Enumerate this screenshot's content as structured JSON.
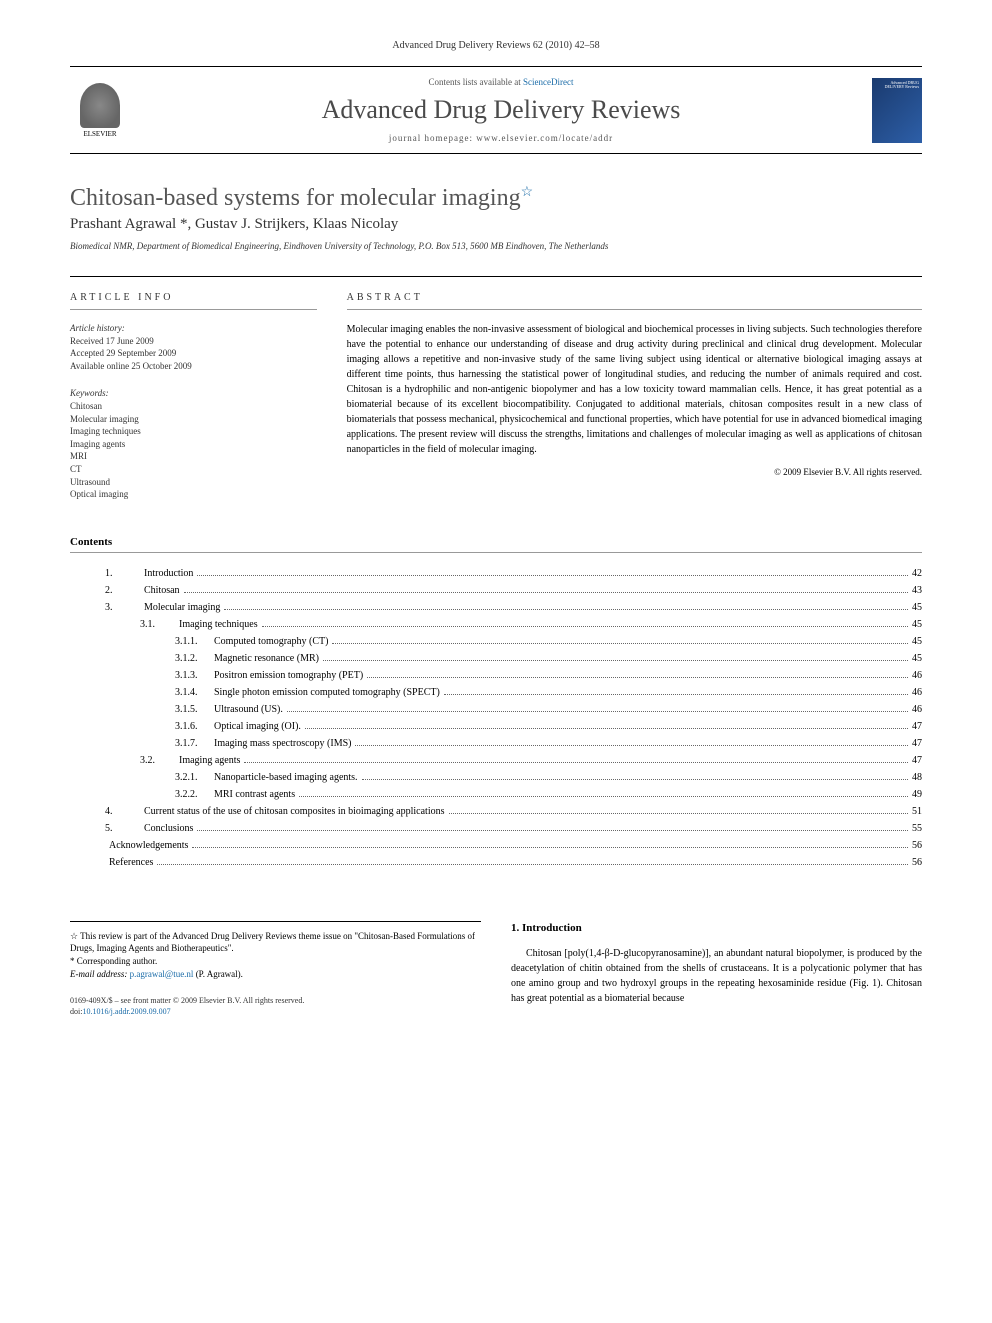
{
  "header": {
    "citation": "Advanced Drug Delivery Reviews 62 (2010) 42–58"
  },
  "banner": {
    "publisher": "ELSEVIER",
    "contents_prefix": "Contents lists available at ",
    "contents_link": "ScienceDirect",
    "journal_title": "Advanced Drug Delivery Reviews",
    "homepage_label": "journal homepage: ",
    "homepage_url": "www.elsevier.com/locate/addr",
    "cover_text": "Advanced DRUG DELIVERY Reviews"
  },
  "article": {
    "title": "Chitosan-based systems for molecular imaging",
    "authors": "Prashant Agrawal *, Gustav J. Strijkers, Klaas Nicolay",
    "affiliation": "Biomedical NMR, Department of Biomedical Engineering, Eindhoven University of Technology, P.O. Box 513, 5600 MB Eindhoven, The Netherlands"
  },
  "info": {
    "header": "ARTICLE INFO",
    "history_label": "Article history:",
    "received": "Received 17 June 2009",
    "accepted": "Accepted 29 September 2009",
    "online": "Available online 25 October 2009",
    "keywords_label": "Keywords:",
    "keywords": [
      "Chitosan",
      "Molecular imaging",
      "Imaging techniques",
      "Imaging agents",
      "MRI",
      "CT",
      "Ultrasound",
      "Optical imaging"
    ]
  },
  "abstract": {
    "header": "ABSTRACT",
    "text": "Molecular imaging enables the non-invasive assessment of biological and biochemical processes in living subjects. Such technologies therefore have the potential to enhance our understanding of disease and drug activity during preclinical and clinical drug development. Molecular imaging allows a repetitive and non-invasive study of the same living subject using identical or alternative biological imaging assays at different time points, thus harnessing the statistical power of longitudinal studies, and reducing the number of animals required and cost. Chitosan is a hydrophilic and non-antigenic biopolymer and has a low toxicity toward mammalian cells. Hence, it has great potential as a biomaterial because of its excellent biocompatibility. Conjugated to additional materials, chitosan composites result in a new class of biomaterials that possess mechanical, physicochemical and functional properties, which have potential for use in advanced biomedical imaging applications. The present review will discuss the strengths, limitations and challenges of molecular imaging as well as applications of chitosan nanoparticles in the field of molecular imaging.",
    "copyright": "© 2009 Elsevier B.V. All rights reserved."
  },
  "contents": {
    "title": "Contents",
    "items": [
      {
        "num": "1.",
        "label": "Introduction",
        "page": "42",
        "indent": 1
      },
      {
        "num": "2.",
        "label": "Chitosan",
        "page": "43",
        "indent": 1
      },
      {
        "num": "3.",
        "label": "Molecular imaging",
        "page": "45",
        "indent": 1
      },
      {
        "num": "3.1.",
        "label": "Imaging techniques",
        "page": "45",
        "indent": 2
      },
      {
        "num": "3.1.1.",
        "label": "Computed tomography (CT)",
        "page": "45",
        "indent": 3
      },
      {
        "num": "3.1.2.",
        "label": "Magnetic resonance (MR)",
        "page": "45",
        "indent": 3
      },
      {
        "num": "3.1.3.",
        "label": "Positron emission tomography (PET)",
        "page": "46",
        "indent": 3
      },
      {
        "num": "3.1.4.",
        "label": "Single photon emission computed tomography (SPECT)",
        "page": "46",
        "indent": 3
      },
      {
        "num": "3.1.5.",
        "label": "Ultrasound (US).",
        "page": "46",
        "indent": 3
      },
      {
        "num": "3.1.6.",
        "label": "Optical imaging (OI).",
        "page": "47",
        "indent": 3
      },
      {
        "num": "3.1.7.",
        "label": "Imaging mass spectroscopy (IMS)",
        "page": "47",
        "indent": 3
      },
      {
        "num": "3.2.",
        "label": "Imaging agents",
        "page": "47",
        "indent": 2
      },
      {
        "num": "3.2.1.",
        "label": "Nanoparticle-based imaging agents.",
        "page": "48",
        "indent": 3
      },
      {
        "num": "3.2.2.",
        "label": "MRI contrast agents",
        "page": "49",
        "indent": 3
      },
      {
        "num": "4.",
        "label": "Current status of the use of chitosan composites in bioimaging applications",
        "page": "51",
        "indent": 1
      },
      {
        "num": "5.",
        "label": "Conclusions",
        "page": "55",
        "indent": 1
      },
      {
        "num": "",
        "label": "Acknowledgements",
        "page": "56",
        "indent": 1
      },
      {
        "num": "",
        "label": "References",
        "page": "56",
        "indent": 1
      }
    ]
  },
  "footnotes": {
    "star_note": "☆ This review is part of the Advanced Drug Delivery Reviews theme issue on \"Chitosan-Based Formulations of Drugs, Imaging Agents and Biotherapeutics\".",
    "corr_author": "* Corresponding author.",
    "email_label": "E-mail address: ",
    "email": "p.agrawal@tue.nl",
    "email_suffix": " (P. Agrawal).",
    "front_matter": "0169-409X/$ – see front matter © 2009 Elsevier B.V. All rights reserved.",
    "doi_label": "doi:",
    "doi": "10.1016/j.addr.2009.09.007"
  },
  "intro": {
    "heading": "1. Introduction",
    "text": "Chitosan [poly(1,4-β-D-glucopyranosamine)], an abundant natural biopolymer, is produced by the deacetylation of chitin obtained from the shells of crustaceans. It is a polycationic polymer that has one amino group and two hydroxyl groups in the repeating hexosaminide residue (Fig. 1). Chitosan has great potential as a biomaterial because",
    "fig_link": "Fig. 1"
  },
  "colors": {
    "link": "#1b6ca8",
    "text": "#000000",
    "muted": "#555555",
    "border": "#000000"
  }
}
